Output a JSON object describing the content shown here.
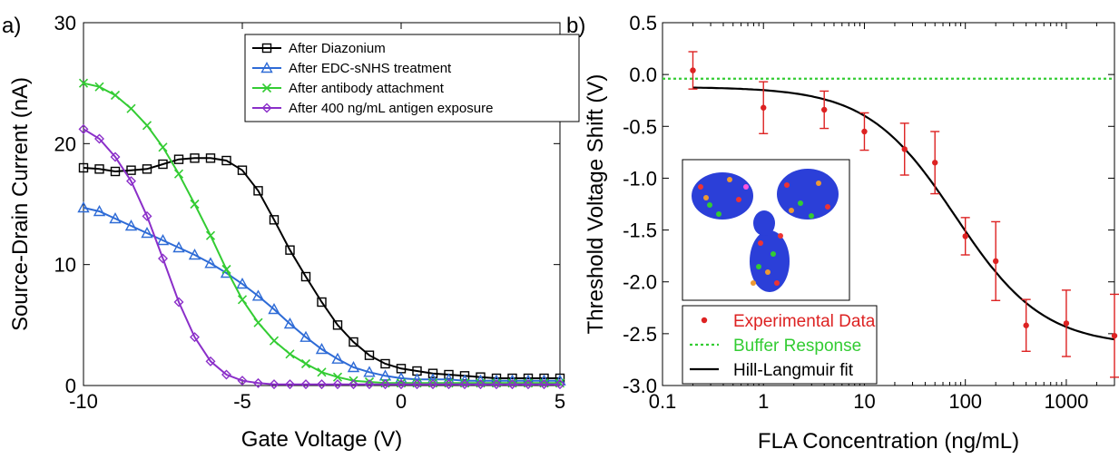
{
  "figure": {
    "panel_a_label": "a)",
    "panel_b_label": "b)"
  },
  "chart_data": [
    {
      "type": "line",
      "panel": "a)",
      "xlabel": "Gate Voltage (V)",
      "ylabel": "Source-Drain Current (nA)",
      "xlim": [
        -10,
        5
      ],
      "ylim": [
        0,
        30
      ],
      "xticks": [
        -10,
        -5,
        0,
        5
      ],
      "yticks": [
        0,
        10,
        20,
        30
      ],
      "legend_placement": "top-right",
      "series": [
        {
          "name": "After Diazonium",
          "color": "#000000",
          "marker": "square",
          "x": [
            -10,
            -9.5,
            -9,
            -8.5,
            -8,
            -7.5,
            -7,
            -6.5,
            -6,
            -5.5,
            -5,
            -4.5,
            -4,
            -3.5,
            -3,
            -2.5,
            -2,
            -1.5,
            -1,
            -0.5,
            0,
            0.5,
            1,
            1.5,
            2,
            2.5,
            3,
            3.5,
            4,
            4.5,
            5
          ],
          "y": [
            18.0,
            17.9,
            17.7,
            17.8,
            17.9,
            18.3,
            18.7,
            18.8,
            18.8,
            18.6,
            17.8,
            16.1,
            13.7,
            11.2,
            9.0,
            6.9,
            5.0,
            3.6,
            2.5,
            1.8,
            1.4,
            1.2,
            1.0,
            0.9,
            0.8,
            0.7,
            0.6,
            0.6,
            0.6,
            0.6,
            0.6
          ]
        },
        {
          "name": "After EDC-sNHS treatment",
          "color": "#2e6bd6",
          "marker": "triangle",
          "x": [
            -10,
            -9.5,
            -9,
            -8.5,
            -8,
            -7.5,
            -7,
            -6.5,
            -6,
            -5.5,
            -5,
            -4.5,
            -4,
            -3.5,
            -3,
            -2.5,
            -2,
            -1.5,
            -1,
            -0.5,
            0,
            0.5,
            1,
            1.5,
            2,
            2.5,
            3,
            3.5,
            4,
            4.5,
            5
          ],
          "y": [
            14.7,
            14.4,
            13.8,
            13.2,
            12.6,
            12.0,
            11.4,
            10.8,
            10.1,
            9.3,
            8.4,
            7.4,
            6.3,
            5.1,
            4.0,
            3.0,
            2.2,
            1.5,
            1.1,
            0.8,
            0.6,
            0.5,
            0.5,
            0.5,
            0.4,
            0.4,
            0.4,
            0.4,
            0.4,
            0.4,
            0.4
          ]
        },
        {
          "name": "After antibody attachment",
          "color": "#33cc33",
          "marker": "x",
          "x": [
            -10,
            -9.5,
            -9,
            -8.5,
            -8,
            -7.5,
            -7,
            -6.5,
            -6,
            -5.5,
            -5,
            -4.5,
            -4,
            -3.5,
            -3,
            -2.5,
            -2,
            -1.5,
            -1,
            -0.5,
            0,
            0.5,
            1,
            1.5,
            2,
            2.5,
            3,
            3.5,
            4,
            4.5,
            5
          ],
          "y": [
            25.0,
            24.7,
            24.0,
            22.9,
            21.5,
            19.7,
            17.5,
            15.0,
            12.4,
            9.6,
            7.1,
            5.2,
            3.7,
            2.6,
            1.8,
            1.1,
            0.7,
            0.4,
            0.3,
            0.2,
            0.2,
            0.2,
            0.2,
            0.2,
            0.2,
            0.2,
            0.2,
            0.2,
            0.2,
            0.2,
            0.2
          ]
        },
        {
          "name": "After 400 ng/mL antigen exposure",
          "color": "#8b2fc9",
          "marker": "diamond",
          "x": [
            -10,
            -9.5,
            -9,
            -8.5,
            -8,
            -7.5,
            -7,
            -6.5,
            -6,
            -5.5,
            -5,
            -4.5,
            -4,
            -3.5,
            -3,
            -2.5,
            -2,
            -1.5,
            -1,
            -0.5,
            0,
            0.5,
            1,
            1.5,
            2,
            2.5,
            3,
            3.5,
            4,
            4.5,
            5
          ],
          "y": [
            21.2,
            20.4,
            18.9,
            16.9,
            14.0,
            10.5,
            6.9,
            4.0,
            2.0,
            0.9,
            0.4,
            0.2,
            0.1,
            0.1,
            0.1,
            0.1,
            0.1,
            0.1,
            0.1,
            0.1,
            0.1,
            0.1,
            0.1,
            0.1,
            0.1,
            0.1,
            0.1,
            0.1,
            0.1,
            0.1,
            0.1
          ]
        }
      ]
    },
    {
      "type": "scatter",
      "panel": "b)",
      "xlabel": "FLA Concentration (ng/mL)",
      "ylabel": "Threshold Voltage Shift (V)",
      "xscale": "log",
      "xlim": [
        0.1,
        3000
      ],
      "ylim": [
        -3.0,
        0.5
      ],
      "xticks": [
        0.1,
        1,
        10,
        100,
        1000
      ],
      "xtick_labels": [
        "0.1",
        "1",
        "10",
        "100",
        "1000"
      ],
      "yticks": [
        0.5,
        0.0,
        -0.5,
        -1.0,
        -1.5,
        -2.0,
        -2.5,
        -3.0
      ],
      "ytick_labels": [
        "0.5",
        "0.0",
        "-0.5",
        "-1.0",
        "-1.5",
        "-2.0",
        "-2.5",
        "-3.0"
      ],
      "legend_placement": "bottom-left",
      "inset": "antibody protein structure image",
      "series": [
        {
          "name": "Experimental Data",
          "color": "#dd2222",
          "x": [
            0.2,
            1,
            4,
            10,
            25,
            50,
            100,
            200,
            400,
            1000,
            3000
          ],
          "y": [
            0.04,
            -0.32,
            -0.34,
            -0.55,
            -0.72,
            -0.85,
            -1.56,
            -1.8,
            -2.42,
            -2.4,
            -2.52
          ],
          "err": [
            0.18,
            0.25,
            0.18,
            0.18,
            0.25,
            0.3,
            0.18,
            0.38,
            0.25,
            0.32,
            0.4
          ]
        },
        {
          "name": "Buffer Response",
          "color": "#33cc33",
          "style": "dotted",
          "y": -0.04
        },
        {
          "name": "Hill-Langmuir fit",
          "color": "#000000",
          "style": "solid",
          "fit": {
            "baseline": -0.12,
            "plateau": -2.62,
            "k": 80,
            "n": 1.0
          }
        }
      ]
    }
  ]
}
